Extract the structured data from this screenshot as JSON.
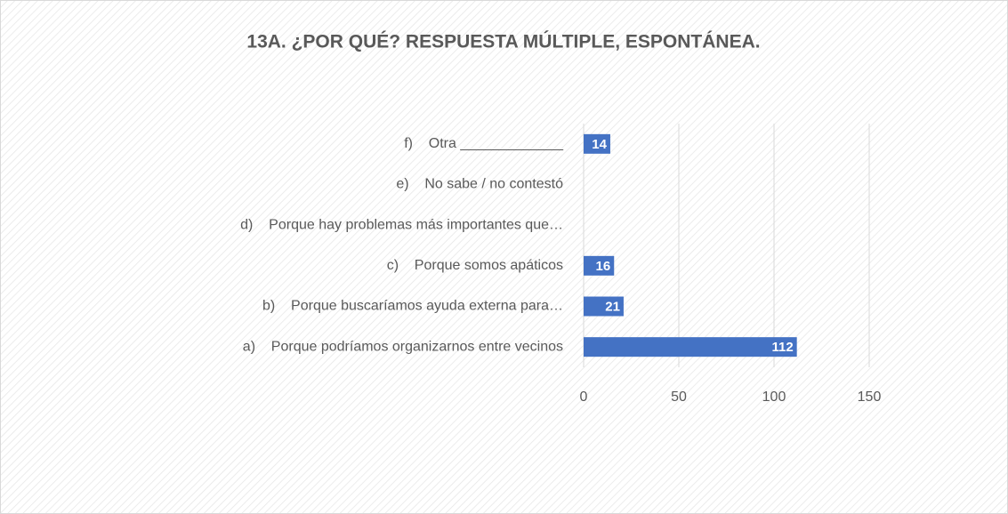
{
  "chart_data": {
    "type": "barh",
    "title": "13A. ¿POR QUÉ? RESPUESTA MÚLTIPLE, ESPONTÁNEA.",
    "categories": [
      "a)    Porque podríamos organizarnos entre vecinos",
      "b)    Porque buscaríamos ayuda externa para…",
      "c)    Porque somos apáticos",
      "d)    Porque hay problemas más importantes que…",
      "e)    No sabe / no contestó",
      "f)    Otra _____________"
    ],
    "values": [
      112,
      21,
      16,
      null,
      null,
      14
    ],
    "color": "#4472c4",
    "xlim": [
      0,
      150
    ],
    "xticks": [
      0,
      50,
      100,
      150
    ],
    "grid": true
  }
}
